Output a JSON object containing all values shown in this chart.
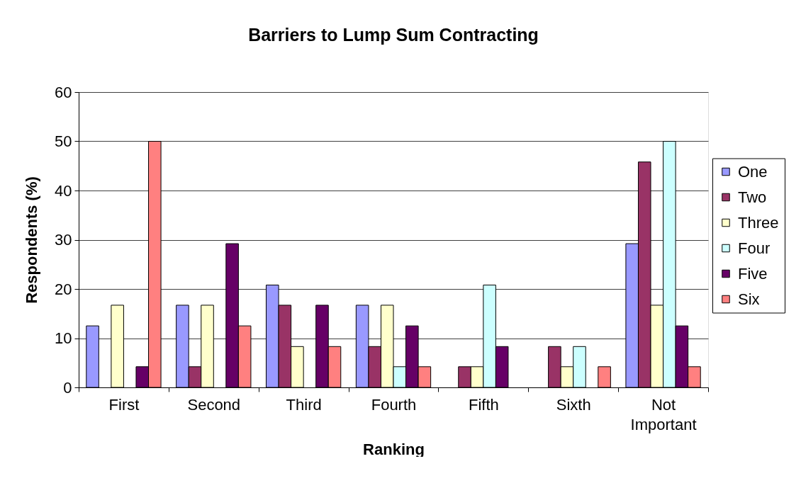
{
  "chart_data": {
    "type": "bar",
    "title": "Barriers to Lump Sum Contracting",
    "xlabel": "Ranking",
    "ylabel": "Respondents (%)",
    "categories": [
      "First",
      "Second",
      "Third",
      "Fourth",
      "Fifth",
      "Sixth",
      "Not Important"
    ],
    "series": [
      {
        "name": "One",
        "color": "#9999ff",
        "values": [
          12.5,
          16.7,
          20.8,
          16.7,
          null,
          null,
          29.2
        ]
      },
      {
        "name": "Two",
        "color": "#993366",
        "values": [
          null,
          4.2,
          16.7,
          8.3,
          4.2,
          8.3,
          45.8
        ]
      },
      {
        "name": "Three",
        "color": "#ffffcc",
        "values": [
          16.7,
          16.7,
          8.3,
          16.7,
          4.2,
          4.2,
          16.7
        ]
      },
      {
        "name": "Four",
        "color": "#ccffff",
        "values": [
          null,
          null,
          null,
          4.2,
          20.8,
          8.3,
          50
        ]
      },
      {
        "name": "Five",
        "color": "#660066",
        "values": [
          4.2,
          29.2,
          16.7,
          12.5,
          8.3,
          null,
          12.5
        ]
      },
      {
        "name": "Six",
        "color": "#ff8080",
        "values": [
          50,
          12.5,
          8.3,
          4.2,
          null,
          4.2,
          4.2
        ]
      }
    ],
    "ylim": [
      0,
      60
    ],
    "yticks": [
      0,
      10,
      20,
      30,
      40,
      50,
      60
    ],
    "grid": "y",
    "legend": "right"
  }
}
